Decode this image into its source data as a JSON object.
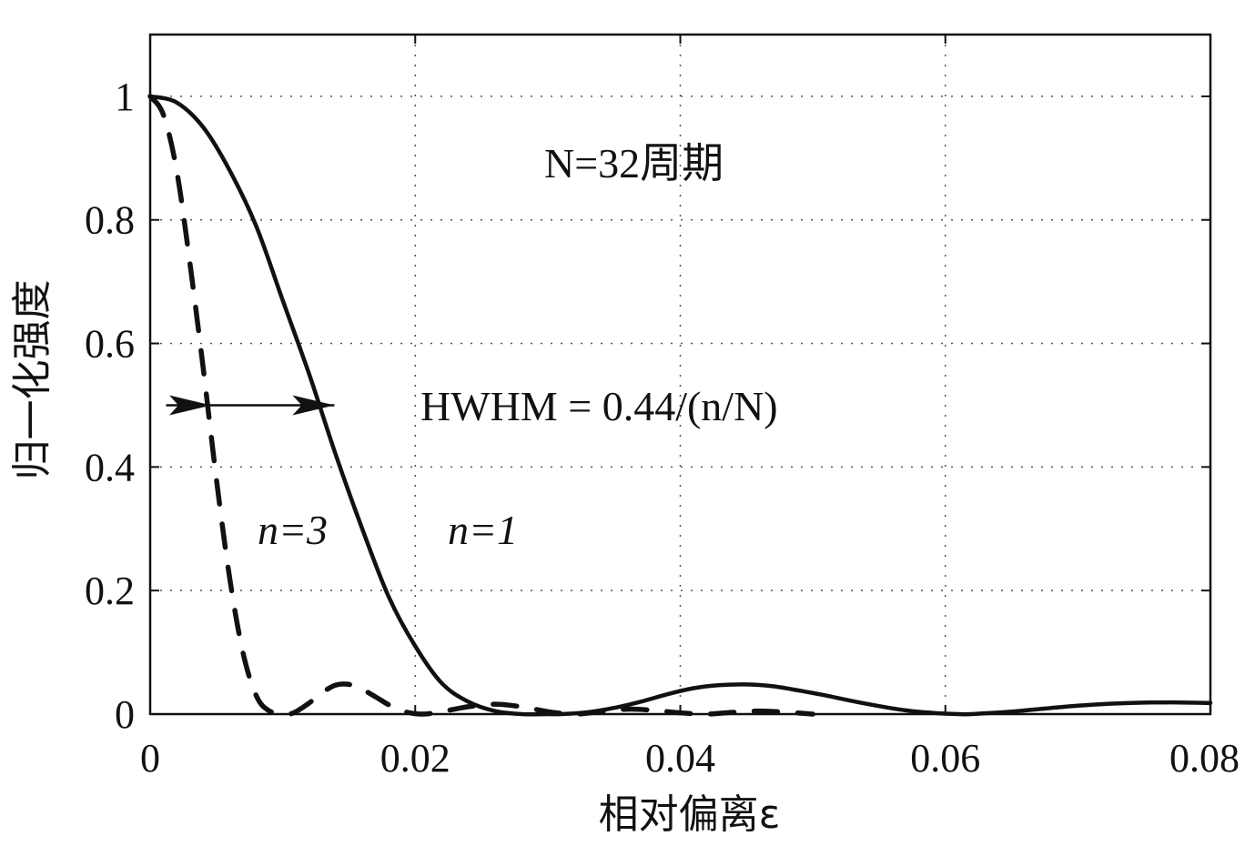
{
  "chart_data": {
    "type": "line",
    "title": "",
    "xlabel": "相对偏离ε",
    "ylabel": "归一化强度",
    "xlim": [
      0,
      0.08
    ],
    "ylim": [
      0,
      1.1
    ],
    "xticks": [
      "0",
      "0.02",
      "0.04",
      "0.06",
      "0.08"
    ],
    "yticks": [
      "0",
      "0.2",
      "0.4",
      "0.6",
      "0.8",
      "1"
    ],
    "grid": true,
    "series": [
      {
        "name": "n=1",
        "style": "solid",
        "x": [
          0,
          0.002,
          0.004,
          0.006,
          0.008,
          0.01,
          0.012,
          0.014,
          0.016,
          0.018,
          0.02,
          0.022,
          0.024,
          0.026,
          0.028,
          0.03,
          0.031,
          0.033,
          0.035,
          0.037,
          0.039,
          0.041,
          0.043,
          0.045,
          0.047,
          0.049,
          0.051,
          0.053,
          0.055,
          0.057,
          0.059,
          0.061,
          0.062,
          0.065,
          0.068,
          0.071,
          0.074,
          0.077,
          0.08
        ],
        "y": [
          1.0,
          0.99,
          0.95,
          0.88,
          0.79,
          0.67,
          0.55,
          0.42,
          0.3,
          0.19,
          0.11,
          0.05,
          0.02,
          0.005,
          0.0,
          0.0,
          0.0,
          0.003,
          0.01,
          0.02,
          0.032,
          0.042,
          0.047,
          0.048,
          0.045,
          0.038,
          0.03,
          0.021,
          0.013,
          0.006,
          0.002,
          0.0,
          0.0,
          0.004,
          0.01,
          0.015,
          0.018,
          0.019,
          0.018
        ]
      },
      {
        "name": "n=3",
        "style": "dashed",
        "x": [
          0,
          0.001,
          0.002,
          0.003,
          0.004,
          0.005,
          0.006,
          0.007,
          0.008,
          0.009,
          0.0103,
          0.011,
          0.012,
          0.013,
          0.014,
          0.015,
          0.016,
          0.017,
          0.018,
          0.019,
          0.0205,
          0.022,
          0.024,
          0.026,
          0.028,
          0.03,
          0.032,
          0.034,
          0.036,
          0.038,
          0.04,
          0.042,
          0.044,
          0.046,
          0.048,
          0.05
        ],
        "y": [
          1.0,
          0.97,
          0.88,
          0.73,
          0.56,
          0.38,
          0.22,
          0.1,
          0.03,
          0.005,
          0.0,
          0.004,
          0.018,
          0.035,
          0.047,
          0.048,
          0.04,
          0.028,
          0.015,
          0.005,
          0.0,
          0.004,
          0.012,
          0.016,
          0.012,
          0.004,
          0.0,
          0.004,
          0.008,
          0.006,
          0.002,
          0.0,
          0.003,
          0.005,
          0.003,
          0.0
        ]
      }
    ],
    "annotations": {
      "period_label": "N=32周期",
      "hwhm_label": "HWHM = 0.44/(n/N)",
      "label_n3": "n=3",
      "label_n1": "n=1"
    }
  }
}
